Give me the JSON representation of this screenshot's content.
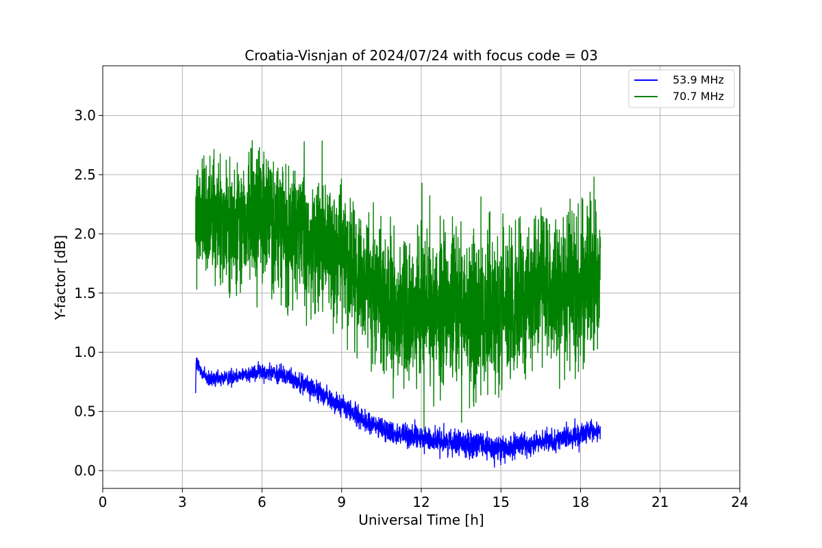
{
  "chart_data": {
    "type": "line",
    "title": "Croatia-Visnjan of 2024/07/24 with focus code = 03",
    "xlabel": "Universal Time [h]",
    "ylabel": "Y-factor [dB]",
    "xlim": [
      0,
      24
    ],
    "ylim": [
      -0.15,
      3.42
    ],
    "x_ticks": [
      0,
      3,
      6,
      9,
      12,
      15,
      18,
      21,
      24
    ],
    "x_tick_labels": [
      "0",
      "3",
      "6",
      "9",
      "12",
      "15",
      "18",
      "21",
      "24"
    ],
    "y_ticks": [
      0.0,
      0.5,
      1.0,
      1.5,
      2.0,
      2.5,
      3.0
    ],
    "y_tick_labels": [
      "0.0",
      "0.5",
      "1.0",
      "1.5",
      "2.0",
      "2.5",
      "3.0"
    ],
    "grid": true,
    "legend_position": "top-right",
    "series": [
      {
        "name": "53.9 MHz",
        "color": "#0000ff",
        "envelope": {
          "x": [
            3.5,
            3.52,
            4.0,
            5.0,
            6.0,
            7.0,
            8.0,
            9.0,
            10.0,
            11.0,
            12.0,
            13.0,
            14.0,
            15.0,
            16.0,
            17.0,
            18.0,
            18.75
          ],
          "y_center": [
            0.74,
            0.9,
            0.76,
            0.8,
            0.84,
            0.8,
            0.68,
            0.55,
            0.4,
            0.32,
            0.27,
            0.25,
            0.22,
            0.18,
            0.22,
            0.26,
            0.3,
            0.34
          ],
          "y_spread": [
            0.14,
            0.14,
            0.1,
            0.09,
            0.1,
            0.11,
            0.12,
            0.13,
            0.13,
            0.14,
            0.14,
            0.14,
            0.16,
            0.17,
            0.13,
            0.12,
            0.13,
            0.13
          ]
        }
      },
      {
        "name": "70.7 MHz",
        "color": "#008000",
        "envelope": {
          "x": [
            3.5,
            4.0,
            5.0,
            6.0,
            7.0,
            8.0,
            9.0,
            10.0,
            11.0,
            12.0,
            13.0,
            14.0,
            15.0,
            16.0,
            17.0,
            18.0,
            18.5,
            18.75
          ],
          "y_center": [
            2.1,
            2.15,
            2.05,
            2.2,
            2.0,
            1.95,
            1.8,
            1.6,
            1.3,
            1.35,
            1.4,
            1.3,
            1.35,
            1.45,
            1.5,
            1.55,
            1.6,
            1.6
          ],
          "y_spread": [
            0.75,
            0.75,
            0.75,
            0.8,
            0.85,
            0.8,
            0.8,
            0.85,
            0.9,
            0.9,
            0.9,
            0.95,
            0.9,
            0.9,
            0.9,
            0.95,
            0.9,
            0.8
          ]
        }
      }
    ]
  }
}
